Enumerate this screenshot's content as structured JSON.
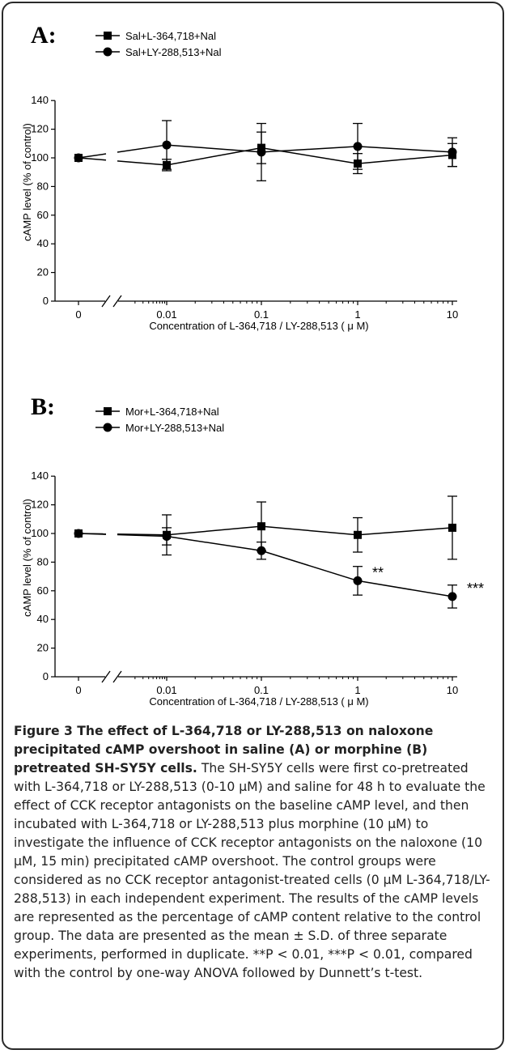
{
  "chart_data": [
    {
      "panel_label": "A:",
      "type": "line",
      "x_labels": [
        "0",
        "0.01",
        "0.1",
        "1",
        "10"
      ],
      "x": [
        0,
        0.01,
        0.1,
        1,
        10
      ],
      "x_scale": "log with axis break between 0 and 0.01",
      "xlabel": "Concentration of L-364,718 / LY-288,513 ( μ M)",
      "ylabel": "cAMP level (% of control)",
      "ylim": [
        0,
        140
      ],
      "yticks": [
        "0",
        "20",
        "40",
        "60",
        "80",
        "100",
        "120",
        "140"
      ],
      "legend_position": "top-left",
      "series": [
        {
          "name": "Sal+L-364,718+Nal",
          "marker": "square",
          "values": [
            100,
            95,
            107,
            96,
            102
          ],
          "errors": [
            0,
            4,
            11,
            7,
            8
          ]
        },
        {
          "name": "Sal+LY-288,513+Nal",
          "marker": "circle",
          "values": [
            100,
            109,
            104,
            108,
            104
          ],
          "errors": [
            0,
            17,
            20,
            16,
            10
          ]
        }
      ],
      "annotations": []
    },
    {
      "panel_label": "B:",
      "type": "line",
      "x_labels": [
        "0",
        "0.01",
        "0.1",
        "1",
        "10"
      ],
      "x": [
        0,
        0.01,
        0.1,
        1,
        10
      ],
      "x_scale": "log with axis break between 0 and 0.01",
      "xlabel": "Concentration of L-364,718 / LY-288,513 ( μ M)",
      "ylabel": "cAMP level (% of control)",
      "ylim": [
        0,
        140
      ],
      "yticks": [
        "0",
        "20",
        "40",
        "60",
        "80",
        "100",
        "120",
        "140"
      ],
      "legend_position": "top-left",
      "series": [
        {
          "name": "Mor+L-364,718+Nal",
          "marker": "square",
          "values": [
            100,
            99,
            105,
            99,
            104
          ],
          "errors": [
            0,
            14,
            17,
            12,
            22
          ]
        },
        {
          "name": "Mor+LY-288,513+Nal",
          "marker": "circle",
          "values": [
            100,
            98,
            88,
            67,
            56
          ],
          "errors": [
            0,
            6,
            6,
            10,
            8
          ]
        }
      ],
      "annotations": [
        {
          "text": "**",
          "x": 1,
          "y": 67
        },
        {
          "text": "***",
          "x": 10,
          "y": 56
        }
      ]
    }
  ],
  "caption": {
    "title": "Figure 3 The effect of L-364,718 or LY-288,513 on naloxone precipitated cAMP overshoot in saline (A) or morphine (B) pretreated SH-SY5Y cells.",
    "body": " The SH-SY5Y cells were first co-pretreated with L-364,718 or LY-288,513 (0-10 μM) and saline for 48 h to evaluate the effect of CCK receptor antagonists on the baseline cAMP level, and then incubated with L-364,718 or LY-288,513 plus morphine (10 μM) to investigate the influence of CCK receptor antagonists on the naloxone (10 μM, 15 min) precipitated cAMP overshoot. The control groups were considered as no CCK receptor antagonist-treated cells (0 μM L-364,718/LY-288,513) in each independent experiment. The results of the cAMP levels are represented as the percentage of cAMP content relative to the control group. The data are presented as the mean ± S.D. of three separate experiments, performed in duplicate. **P < 0.01, ***P < 0.01, compared with the control by one-way ANOVA followed by Dunnett’s t-test."
  }
}
